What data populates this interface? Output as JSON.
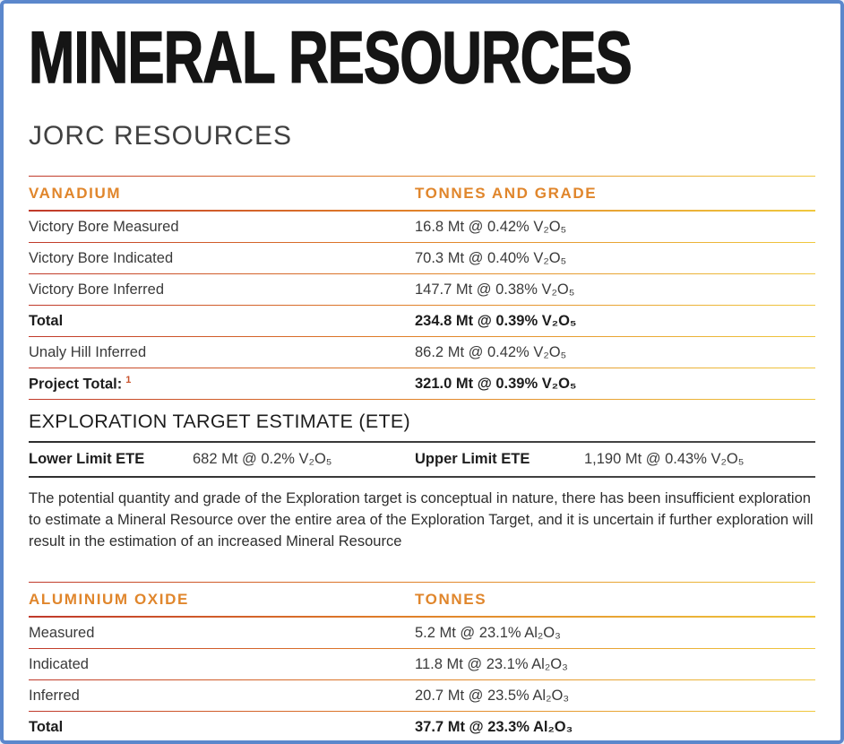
{
  "page": {
    "title": "MINERAL RESOURCES",
    "subtitle": "JORC RESOURCES"
  },
  "vanadium_table": {
    "headers": [
      "VANADIUM",
      "TONNES AND GRADE"
    ],
    "rows": [
      {
        "label": "Victory Bore Measured",
        "value": "16.8 Mt @ 0.42% V₂O₅",
        "bold": false
      },
      {
        "label": "Victory Bore Indicated",
        "value": "70.3 Mt @ 0.40% V₂O₅",
        "bold": false
      },
      {
        "label": "Victory Bore Inferred",
        "value": "147.7 Mt @ 0.38% V₂O₅",
        "bold": false
      },
      {
        "label": "Total",
        "value": "234.8 Mt @ 0.39% V₂O₅",
        "bold": true
      },
      {
        "label": "Unaly Hill Inferred",
        "value": "86.2 Mt @ 0.42% V₂O₅",
        "bold": false
      },
      {
        "label": "Project Total:",
        "label_sup": "1",
        "value": "321.0 Mt @ 0.39% V₂O₅",
        "bold": true
      }
    ]
  },
  "ete": {
    "heading": "EXPLORATION TARGET ESTIMATE (ETE)",
    "lower_label": "Lower Limit ETE",
    "lower_value": "682 Mt @ 0.2% V₂O₅",
    "upper_label": "Upper Limit ETE",
    "upper_value": "1,190 Mt @ 0.43% V₂O₅",
    "disclaimer": "The potential quantity and grade of the Exploration target is conceptual in nature, there has been insufficient exploration to estimate a Mineral Resource over the entire area of the Exploration Target, and it is uncertain if further exploration will result in the estimation of an increased Mineral Resource"
  },
  "aluminium_table": {
    "headers": [
      "ALUMINIUM OXIDE",
      "TONNES"
    ],
    "rows": [
      {
        "label": "Measured",
        "value": "5.2 Mt @ 23.1% Al₂O₃",
        "bold": false
      },
      {
        "label": "Indicated",
        "value": "11.8 Mt @ 23.1% Al₂O₃",
        "bold": false
      },
      {
        "label": "Inferred",
        "value": "20.7 Mt @ 23.5% Al₂O₃",
        "bold": false
      },
      {
        "label": "Total",
        "value": "37.7 Mt @ 23.3% Al₂O₃",
        "bold": true
      }
    ]
  },
  "colors": {
    "accent_orange": "#E0862C",
    "footnote_orange": "#C8522C",
    "line_gradient_start": "#C0392B",
    "line_gradient_mid": "#DF7C29",
    "line_gradient_end": "#F0C83E",
    "border_blue": "#5B87CC",
    "title_black": "#151515",
    "body_text": "#3A3A3A"
  }
}
